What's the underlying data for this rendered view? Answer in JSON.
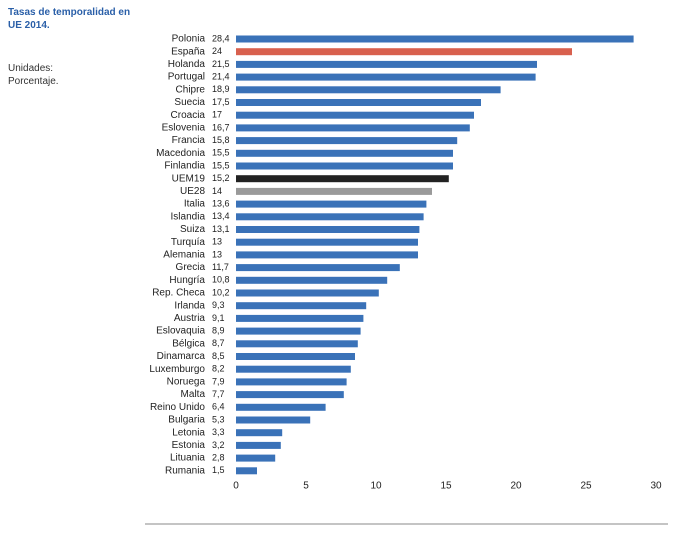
{
  "chart_data": {
    "type": "hbar",
    "title": "Tasas de temporalidad en UE 2014.",
    "note": "Unidades: Porcentaje.",
    "categories": [
      "Polonia",
      "España",
      "Holanda",
      "Portugal",
      "Chipre",
      "Suecia",
      "Croacia",
      "Eslovenia",
      "Francia",
      "Macedonia",
      "Finlandia",
      "UEM19",
      "UE28",
      "Italia",
      "Islandia",
      "Suiza",
      "Turquía",
      "Alemania",
      "Grecia",
      "Hungría",
      "Rep. Checa",
      "Irlanda",
      "Austria",
      "Eslovaquia",
      "Bélgica",
      "Dinamarca",
      "Luxemburgo",
      "Noruega",
      "Malta",
      "Reino Unido",
      "Bulgaria",
      "Letonia",
      "Estonia",
      "Lituania",
      "Rumania"
    ],
    "values": [
      28.4,
      24,
      21.5,
      21.4,
      18.9,
      17.5,
      17,
      16.7,
      15.8,
      15.5,
      15.5,
      15.2,
      14,
      13.6,
      13.4,
      13.1,
      13,
      13,
      11.7,
      10.8,
      10.2,
      9.3,
      9.1,
      8.9,
      8.7,
      8.5,
      8.2,
      7.9,
      7.7,
      6.4,
      5.3,
      3.3,
      3.2,
      2.8,
      1.5
    ],
    "value_labels": [
      "28,4",
      "24",
      "21,5",
      "21,4",
      "18,9",
      "17,5",
      "17",
      "16,7",
      "15,8",
      "15,5",
      "15,5",
      "15,2",
      "14",
      "13,6",
      "13,4",
      "13,1",
      "13",
      "13",
      "11,7",
      "10,8",
      "10,2",
      "9,3",
      "9,1",
      "8,9",
      "8,7",
      "8,5",
      "8,2",
      "7,9",
      "7,7",
      "6,4",
      "5,3",
      "3,3",
      "3,2",
      "2,8",
      "1,5"
    ],
    "colors": [
      "#3a72b8",
      "#d8604e",
      "#3a72b8",
      "#3a72b8",
      "#3a72b8",
      "#3a72b8",
      "#3a72b8",
      "#3a72b8",
      "#3a72b8",
      "#3a72b8",
      "#3a72b8",
      "#222222",
      "#9a9a9a",
      "#3a72b8",
      "#3a72b8",
      "#3a72b8",
      "#3a72b8",
      "#3a72b8",
      "#3a72b8",
      "#3a72b8",
      "#3a72b8",
      "#3a72b8",
      "#3a72b8",
      "#3a72b8",
      "#3a72b8",
      "#3a72b8",
      "#3a72b8",
      "#3a72b8",
      "#3a72b8",
      "#3a72b8",
      "#3a72b8",
      "#3a72b8",
      "#3a72b8",
      "#3a72b8",
      "#3a72b8"
    ],
    "xlim": [
      0,
      30
    ],
    "xticks": [
      0,
      5,
      10,
      15,
      20,
      25,
      30
    ]
  }
}
